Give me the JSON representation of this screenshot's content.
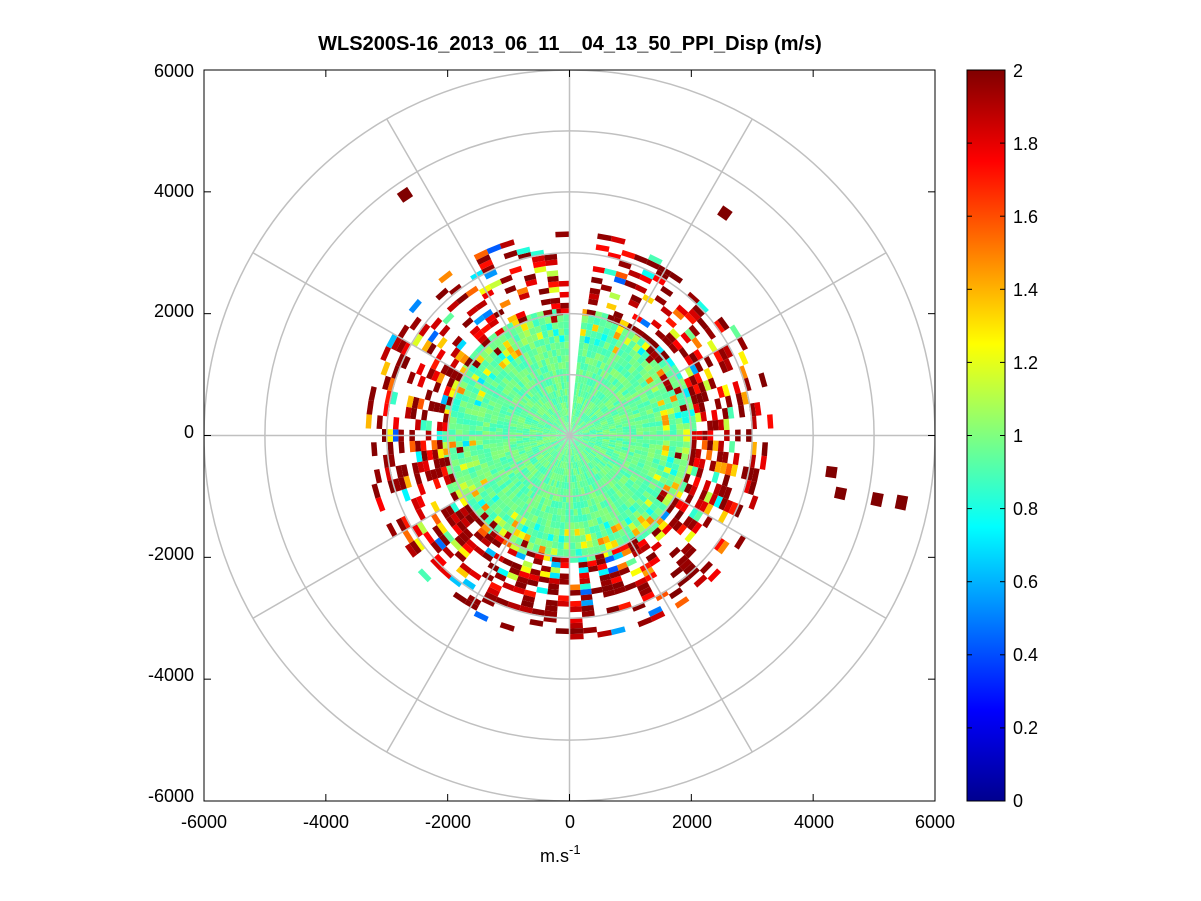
{
  "chart_data": {
    "type": "heatmap",
    "subtype": "polar-ppi",
    "title": "WLS200S-16_2013_06_11__04_13_50_PPI_Disp (m/s)",
    "xlabel": "m.s",
    "xlabel_exp": "-1",
    "ylabel": "",
    "xlim": [
      -6000,
      6000
    ],
    "ylim": [
      -6000,
      6000
    ],
    "xticks": [
      "-6000",
      "-4000",
      "-2000",
      "0",
      "2000",
      "4000",
      "6000"
    ],
    "yticks": [
      "6000",
      "4000",
      "2000",
      "0",
      "-2000",
      "-4000",
      "-6000"
    ],
    "xtick_values": [
      -6000,
      -4000,
      -2000,
      0,
      2000,
      4000,
      6000
    ],
    "ytick_values": [
      6000,
      4000,
      2000,
      0,
      -2000,
      -4000,
      -6000
    ],
    "grid_rings": [
      1000,
      2000,
      3000,
      4000,
      5000,
      6000
    ],
    "grid_spokes_deg": [
      0,
      30,
      60,
      90,
      120,
      150,
      180,
      210,
      240,
      270,
      300,
      330
    ],
    "grid": true,
    "dense_core_radius": 2000,
    "core_value": 0.95,
    "data_max_radius": 3300,
    "gap_azimuth_deg": [
      0,
      6
    ],
    "colorbar": {
      "colormap": "jet",
      "range": [
        0,
        2
      ],
      "ticks": [
        "2",
        "1.8",
        "1.6",
        "1.4",
        "1.2",
        "1",
        "0.8",
        "0.6",
        "0.4",
        "0.2",
        "0"
      ],
      "tick_values": [
        2,
        1.8,
        1.6,
        1.4,
        1.2,
        1,
        0.8,
        0.6,
        0.4,
        0.2,
        0
      ]
    },
    "sparse_outliers": [
      {
        "x": -2700,
        "y": 3950,
        "v": 2.0
      },
      {
        "x": 2550,
        "y": 3650,
        "v": 2.0
      },
      {
        "x": 4300,
        "y": -600,
        "v": 2.0
      },
      {
        "x": 4450,
        "y": -950,
        "v": 2.0
      },
      {
        "x": 5050,
        "y": -1050,
        "v": 2.0
      },
      {
        "x": 5450,
        "y": -1100,
        "v": 2.0
      }
    ]
  }
}
